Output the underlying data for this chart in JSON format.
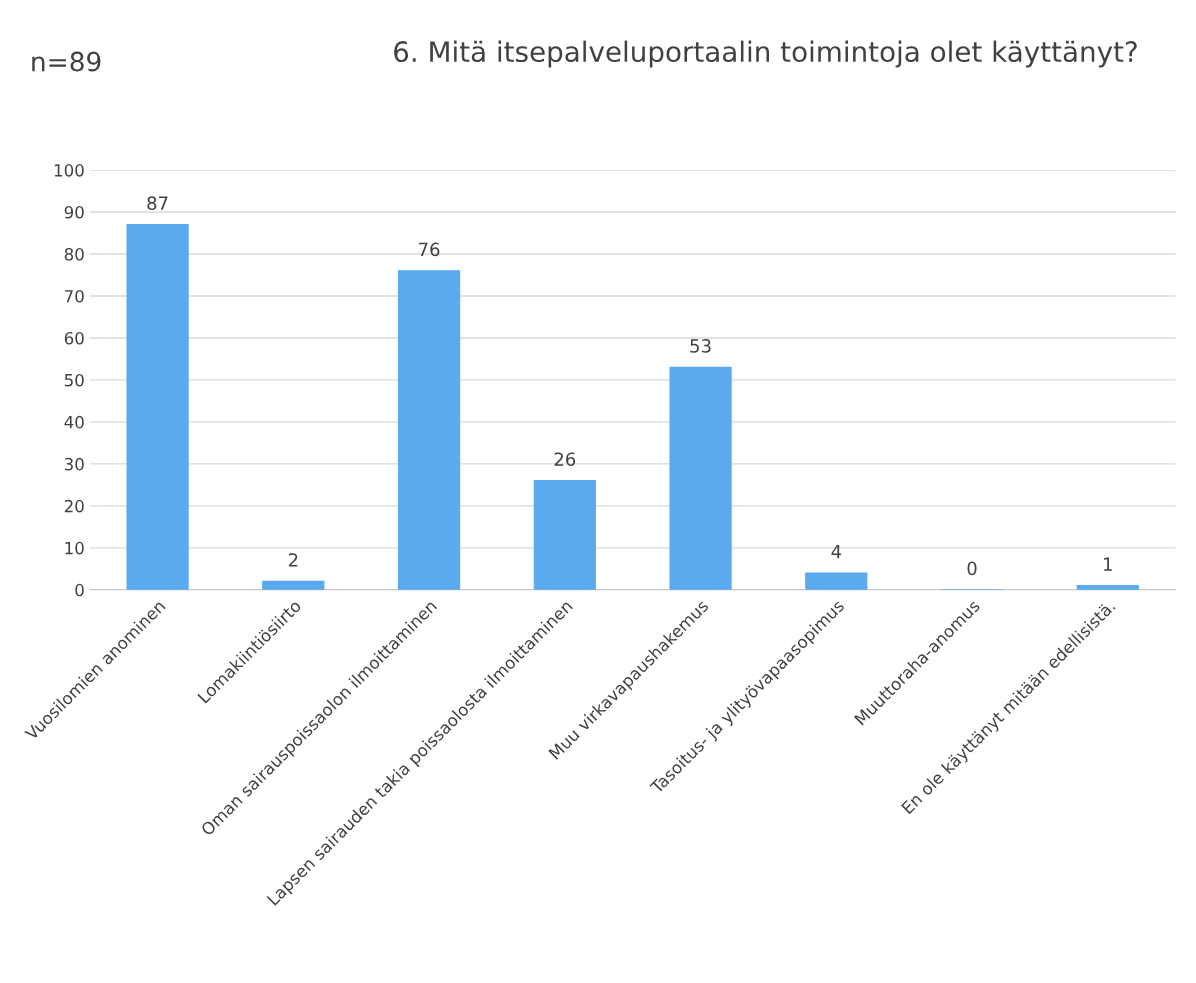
{
  "chart_data": {
    "type": "bar",
    "title": "6. Mitä itsepalveluportaalin toimintoja olet käyttänyt?",
    "annotations": [
      "n=89"
    ],
    "categories": [
      "Vuosilomien anominen",
      "Lomakiintiösiirto",
      "Oman sairauspoissaolon ilmoittaminen",
      "Lapsen sairauden takia poissaolosta ilmoittaminen",
      "Muu virkavapaushakemus",
      "Tasoitus- ja ylityövapaasopimus",
      "Muuttoraha-anomus",
      "En ole käyttänyt mitään edellisistä."
    ],
    "values": [
      87,
      2,
      76,
      26,
      53,
      4,
      0,
      1
    ],
    "color": "#5aaaf0",
    "ylim": [
      0,
      100
    ],
    "yticks": [
      0,
      10,
      20,
      30,
      40,
      50,
      60,
      70,
      80,
      90,
      100
    ],
    "grid": "y",
    "data_labels": true
  }
}
